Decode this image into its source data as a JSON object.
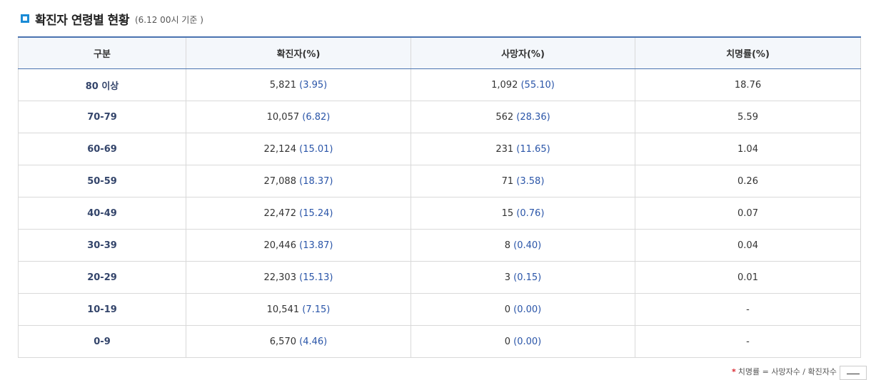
{
  "title": "확진자 연령별 현황",
  "subtitle": "(6.12 00시 기준 )",
  "columns": [
    "구분",
    "확진자(%)",
    "사망자(%)",
    "치명률(%)"
  ],
  "rows": [
    {
      "age": "80 이상",
      "confirmed": "5,821",
      "confirmed_pct": "(3.95)",
      "deaths": "1,092",
      "deaths_pct": "(55.10)",
      "fatality": "18.76"
    },
    {
      "age": "70-79",
      "confirmed": "10,057",
      "confirmed_pct": "(6.82)",
      "deaths": "562",
      "deaths_pct": "(28.36)",
      "fatality": "5.59"
    },
    {
      "age": "60-69",
      "confirmed": "22,124",
      "confirmed_pct": "(15.01)",
      "deaths": "231",
      "deaths_pct": "(11.65)",
      "fatality": "1.04"
    },
    {
      "age": "50-59",
      "confirmed": "27,088",
      "confirmed_pct": "(18.37)",
      "deaths": "71",
      "deaths_pct": "(3.58)",
      "fatality": "0.26"
    },
    {
      "age": "40-49",
      "confirmed": "22,472",
      "confirmed_pct": "(15.24)",
      "deaths": "15",
      "deaths_pct": "(0.76)",
      "fatality": "0.07"
    },
    {
      "age": "30-39",
      "confirmed": "20,446",
      "confirmed_pct": "(13.87)",
      "deaths": "8",
      "deaths_pct": "(0.40)",
      "fatality": "0.04"
    },
    {
      "age": "20-29",
      "confirmed": "22,303",
      "confirmed_pct": "(15.13)",
      "deaths": "3",
      "deaths_pct": "(0.15)",
      "fatality": "0.01"
    },
    {
      "age": "10-19",
      "confirmed": "10,541",
      "confirmed_pct": "(7.15)",
      "deaths": "0",
      "deaths_pct": "(0.00)",
      "fatality": "-"
    },
    {
      "age": "0-9",
      "confirmed": "6,570",
      "confirmed_pct": "(4.46)",
      "deaths": "0",
      "deaths_pct": "(0.00)",
      "fatality": "-"
    }
  ],
  "footnote": "치명률 = 사망자수 / 확진자수",
  "footnote_marker": "*",
  "colors": {
    "accent": "#1a8bd6",
    "header_border": "#4a73b0",
    "pct_text": "#2a55a8",
    "age_text": "#34456b",
    "footnote_marker": "#d9262e"
  }
}
